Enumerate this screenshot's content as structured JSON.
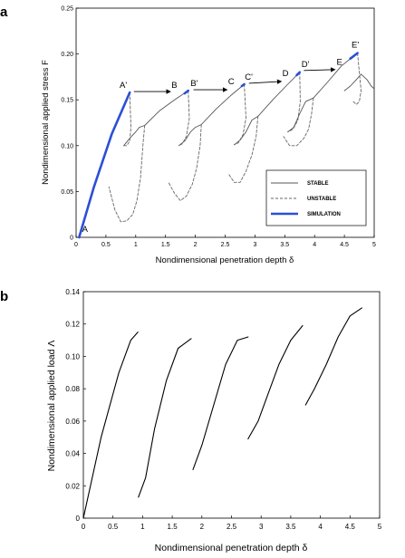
{
  "chart_data": [
    {
      "panel": "a",
      "type": "line",
      "xlabel": "Nondimensional penetration depth δ",
      "ylabel": "Nondimensional applied stress F",
      "xlim": [
        0,
        5
      ],
      "ylim": [
        0,
        0.25
      ],
      "xticks": [
        "0",
        "0.5",
        "1",
        "1.5",
        "2",
        "2.5",
        "3",
        "3.5",
        "4",
        "4.5",
        "5"
      ],
      "yticks": [
        "0",
        "0.05",
        "0.10",
        "0.15",
        "0.20",
        "0.25"
      ],
      "grid": false,
      "legend_position": "bottom-right",
      "legend": [
        "STABLE",
        "UNSTABLE",
        "SIMULATION"
      ],
      "series": [
        {
          "name": "STABLE",
          "style": "solid",
          "color": "#555555",
          "segments": [
            [
              [
                0.05,
                0.0
              ],
              [
                0.3,
                0.055
              ],
              [
                0.6,
                0.113
              ],
              [
                0.9,
                0.158
              ]
            ],
            [
              [
                0.8,
                0.1
              ],
              [
                0.9,
                0.108
              ],
              [
                1.0,
                0.115
              ],
              [
                1.06,
                0.12
              ],
              [
                1.15,
                0.122
              ]
            ],
            [
              [
                1.15,
                0.122
              ],
              [
                1.4,
                0.138
              ],
              [
                1.65,
                0.15
              ],
              [
                1.88,
                0.16
              ]
            ],
            [
              [
                1.72,
                0.1
              ],
              [
                1.82,
                0.105
              ],
              [
                1.92,
                0.115
              ],
              [
                2.0,
                0.12
              ],
              [
                2.1,
                0.123
              ]
            ],
            [
              [
                2.1,
                0.123
              ],
              [
                2.35,
                0.14
              ],
              [
                2.6,
                0.155
              ],
              [
                2.82,
                0.167
              ]
            ],
            [
              [
                2.65,
                0.101
              ],
              [
                2.75,
                0.106
              ],
              [
                2.85,
                0.115
              ],
              [
                2.95,
                0.128
              ],
              [
                3.05,
                0.132
              ]
            ],
            [
              [
                3.05,
                0.132
              ],
              [
                3.3,
                0.15
              ],
              [
                3.55,
                0.167
              ],
              [
                3.75,
                0.18
              ]
            ],
            [
              [
                3.55,
                0.115
              ],
              [
                3.65,
                0.12
              ],
              [
                3.75,
                0.135
              ],
              [
                3.85,
                0.148
              ],
              [
                3.98,
                0.152
              ]
            ],
            [
              [
                3.98,
                0.152
              ],
              [
                4.2,
                0.168
              ],
              [
                4.45,
                0.187
              ],
              [
                4.72,
                0.201
              ]
            ],
            [
              [
                4.5,
                0.16
              ],
              [
                4.6,
                0.165
              ],
              [
                4.7,
                0.172
              ],
              [
                4.78,
                0.178
              ],
              [
                4.88,
                0.172
              ],
              [
                4.95,
                0.165
              ],
              [
                5.0,
                0.162
              ]
            ]
          ]
        },
        {
          "name": "UNSTABLE",
          "style": "dashed",
          "color": "#666666",
          "segments": [
            [
              [
                0.9,
                0.158
              ],
              [
                0.92,
                0.12
              ],
              [
                0.9,
                0.105
              ],
              [
                0.85,
                0.1
              ],
              [
                0.8,
                0.1
              ]
            ],
            [
              [
                1.15,
                0.122
              ],
              [
                1.12,
                0.1
              ],
              [
                1.08,
                0.065
              ],
              [
                1.02,
                0.04
              ],
              [
                0.95,
                0.025
              ],
              [
                0.85,
                0.018
              ],
              [
                0.75,
                0.017
              ],
              [
                0.65,
                0.03
              ],
              [
                0.55,
                0.055
              ]
            ],
            [
              [
                1.88,
                0.16
              ],
              [
                1.9,
                0.13
              ],
              [
                1.85,
                0.11
              ],
              [
                1.78,
                0.102
              ],
              [
                1.72,
                0.1
              ]
            ],
            [
              [
                2.1,
                0.123
              ],
              [
                2.08,
                0.1
              ],
              [
                2.02,
                0.075
              ],
              [
                1.95,
                0.058
              ],
              [
                1.85,
                0.045
              ],
              [
                1.75,
                0.04
              ],
              [
                1.65,
                0.048
              ],
              [
                1.55,
                0.06
              ]
            ],
            [
              [
                2.82,
                0.167
              ],
              [
                2.85,
                0.13
              ],
              [
                2.8,
                0.112
              ],
              [
                2.72,
                0.103
              ],
              [
                2.65,
                0.101
              ]
            ],
            [
              [
                3.05,
                0.132
              ],
              [
                3.02,
                0.11
              ],
              [
                2.95,
                0.09
              ],
              [
                2.85,
                0.072
              ],
              [
                2.75,
                0.06
              ],
              [
                2.65,
                0.06
              ],
              [
                2.55,
                0.07
              ]
            ],
            [
              [
                3.75,
                0.18
              ],
              [
                3.76,
                0.148
              ],
              [
                3.72,
                0.128
              ],
              [
                3.64,
                0.118
              ],
              [
                3.55,
                0.115
              ]
            ],
            [
              [
                3.98,
                0.152
              ],
              [
                3.95,
                0.135
              ],
              [
                3.9,
                0.118
              ],
              [
                3.82,
                0.108
              ],
              [
                3.7,
                0.1
              ],
              [
                3.58,
                0.1
              ],
              [
                3.48,
                0.11
              ]
            ],
            [
              [
                4.72,
                0.201
              ],
              [
                4.78,
                0.16
              ],
              [
                4.75,
                0.148
              ],
              [
                4.7,
                0.145
              ],
              [
                4.65,
                0.148
              ]
            ]
          ]
        },
        {
          "name": "SIMULATION",
          "style": "solid",
          "color": "#2b4fd6",
          "segments": [
            [
              [
                0.05,
                0.0
              ],
              [
                0.3,
                0.055
              ],
              [
                0.6,
                0.113
              ],
              [
                0.9,
                0.158
              ]
            ],
            [
              [
                1.82,
                0.157
              ],
              [
                1.88,
                0.16
              ]
            ],
            [
              [
                2.78,
                0.165
              ],
              [
                2.82,
                0.167
              ]
            ],
            [
              [
                3.7,
                0.177
              ],
              [
                3.75,
                0.18
              ]
            ],
            [
              [
                4.6,
                0.195
              ],
              [
                4.72,
                0.201
              ]
            ]
          ]
        }
      ],
      "annotations": [
        {
          "text": "A",
          "x": 0.1,
          "y": 0.006
        },
        {
          "text": "A'",
          "x": 0.73,
          "y": 0.163
        },
        {
          "text": "B",
          "x": 1.6,
          "y": 0.163
        },
        {
          "text": "B'",
          "x": 1.92,
          "y": 0.165
        },
        {
          "text": "C",
          "x": 2.55,
          "y": 0.167
        },
        {
          "text": "C'",
          "x": 2.83,
          "y": 0.172
        },
        {
          "text": "D",
          "x": 3.46,
          "y": 0.176
        },
        {
          "text": "D'",
          "x": 3.78,
          "y": 0.186
        },
        {
          "text": "E",
          "x": 4.37,
          "y": 0.188
        },
        {
          "text": "E'",
          "x": 4.62,
          "y": 0.207
        }
      ],
      "arrows": [
        {
          "from": [
            0.97,
            0.159
          ],
          "to": [
            1.58,
            0.159
          ]
        },
        {
          "from": [
            1.97,
            0.161
          ],
          "to": [
            2.53,
            0.161
          ]
        },
        {
          "from": [
            2.9,
            0.168
          ],
          "to": [
            3.44,
            0.17
          ]
        },
        {
          "from": [
            3.82,
            0.182
          ],
          "to": [
            4.34,
            0.183
          ]
        }
      ]
    },
    {
      "panel": "b",
      "type": "line",
      "xlabel": "Nondimensional penetration depth δ",
      "ylabel": "Nondimensional applied load  Λ",
      "xlim": [
        0,
        5
      ],
      "ylim": [
        0,
        0.14
      ],
      "xticks": [
        "0",
        "0.5",
        "1",
        "1.5",
        "2",
        "2.5",
        "3",
        "3.5",
        "4",
        "4.5",
        "5"
      ],
      "yticks": [
        "0",
        "0.02",
        "0.04",
        "0.06",
        "0.08",
        "0.10",
        "0.12",
        "0.14"
      ],
      "grid": false,
      "series": [
        {
          "name": "",
          "color": "#000000",
          "segments": [
            [
              [
                0.0,
                0.0
              ],
              [
                0.3,
                0.05
              ],
              [
                0.6,
                0.09
              ],
              [
                0.8,
                0.11
              ],
              [
                0.92,
                0.115
              ]
            ],
            [
              [
                0.93,
                0.013
              ],
              [
                1.05,
                0.025
              ],
              [
                1.2,
                0.055
              ],
              [
                1.4,
                0.085
              ],
              [
                1.6,
                0.105
              ],
              [
                1.82,
                0.111
              ]
            ],
            [
              [
                1.85,
                0.03
              ],
              [
                2.0,
                0.045
              ],
              [
                2.2,
                0.07
              ],
              [
                2.4,
                0.095
              ],
              [
                2.6,
                0.11
              ],
              [
                2.78,
                0.112
              ]
            ],
            [
              [
                2.78,
                0.049
              ],
              [
                2.95,
                0.06
              ],
              [
                3.1,
                0.075
              ],
              [
                3.3,
                0.095
              ],
              [
                3.5,
                0.11
              ],
              [
                3.7,
                0.119
              ]
            ],
            [
              [
                3.75,
                0.07
              ],
              [
                3.9,
                0.08
              ],
              [
                4.1,
                0.095
              ],
              [
                4.3,
                0.112
              ],
              [
                4.5,
                0.125
              ],
              [
                4.7,
                0.13
              ]
            ]
          ]
        }
      ]
    }
  ]
}
